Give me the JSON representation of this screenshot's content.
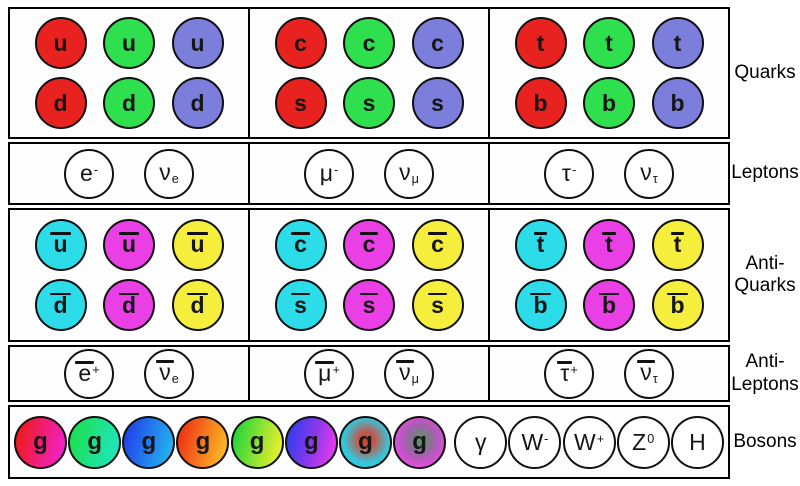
{
  "labels": {
    "quarks": [
      "Quarks"
    ],
    "leptons": [
      "Leptons"
    ],
    "antiquarks": [
      "Anti-",
      "Quarks"
    ],
    "antileptons": [
      "Anti-",
      "Leptons"
    ],
    "bosons": [
      "Bosons"
    ]
  },
  "colors": {
    "quark_fills": [
      "#e8231f",
      "#2ee04e",
      "#7b7edb"
    ],
    "quark_color_names": [
      "red",
      "green",
      "blue"
    ],
    "antiquark_fills": [
      "#2cdce8",
      "#ea3fe4",
      "#f6ee3d"
    ],
    "antiquark_color_names": [
      "cyan",
      "magenta",
      "yellow"
    ],
    "white_fill": "#ffffff",
    "outline": "#101010"
  },
  "quark_columns": [
    {
      "top": "u",
      "bottom": "d"
    },
    {
      "top": "c",
      "bottom": "s"
    },
    {
      "top": "t",
      "bottom": "b"
    }
  ],
  "lepton_columns": [
    [
      {
        "base": "e",
        "sup": "-",
        "name": "electron"
      },
      {
        "base": "ν",
        "sub": "e",
        "name": "electron-neutrino"
      }
    ],
    [
      {
        "base": "μ",
        "sup": "-",
        "name": "muon"
      },
      {
        "base": "ν",
        "sub": "μ",
        "name": "muon-neutrino"
      }
    ],
    [
      {
        "base": "τ",
        "sup": "-",
        "name": "tau"
      },
      {
        "base": "ν",
        "sub": "τ",
        "name": "tau-neutrino"
      }
    ]
  ],
  "antiquark_columns": [
    {
      "top": "u",
      "bottom": "d"
    },
    {
      "top": "c",
      "bottom": "s"
    },
    {
      "top": "t",
      "bottom": "b"
    }
  ],
  "antilepton_columns": [
    [
      {
        "base": "e",
        "sup": "+",
        "bar": true,
        "name": "positron"
      },
      {
        "base": "ν",
        "sub": "e",
        "bar": true,
        "name": "electron-antineutrino"
      }
    ],
    [
      {
        "base": "μ",
        "sup": "+",
        "bar": true,
        "name": "antimuon"
      },
      {
        "base": "ν",
        "sub": "μ",
        "bar": true,
        "name": "muon-antineutrino"
      }
    ],
    [
      {
        "base": "τ",
        "sup": "+",
        "bar": true,
        "name": "antitau"
      },
      {
        "base": "ν",
        "sub": "τ",
        "bar": true,
        "name": "tau-antineutrino"
      }
    ]
  ],
  "gluons": [
    {
      "label": "g",
      "name": "gluon-red-magenta",
      "fill": "linear-gradient(105deg, #ee1a1a 8%, #f222cc 92%)"
    },
    {
      "label": "g",
      "name": "gluon-green-cyan",
      "fill": "linear-gradient(105deg, #1dde4e 8%, #1fe6c0 92%)"
    },
    {
      "label": "g",
      "name": "gluon-blue-lightblue",
      "fill": "linear-gradient(105deg, #2041e8 8%, #25b4ef 92%)"
    },
    {
      "label": "g",
      "name": "gluon-red-orange",
      "fill": "linear-gradient(105deg, #ef2c14 5%, #f9a822 80%, #fcc62c 100%)"
    },
    {
      "label": "g",
      "name": "gluon-green-yellow",
      "fill": "linear-gradient(105deg, #22d53a 8%, #eef02b 92%)"
    },
    {
      "label": "g",
      "name": "gluon-blue-magenta",
      "fill": "linear-gradient(105deg, #2c3cf2 5%, #9038ea 55%, #ee3cee 95%)"
    },
    {
      "label": "g",
      "name": "gluon-cyan-redcore",
      "fill": "radial-gradient(circle at 52% 45%, #cf4028 0%, #c2584e 22%, #32c8dc 62%)"
    },
    {
      "label": "g",
      "name": "gluon-magenta-greencore",
      "fill": "radial-gradient(circle at 52% 45%, #4f9a5c 0%, #a75fb0 42%, #e94ae4 75%)"
    }
  ],
  "ew_bosons": [
    {
      "base": "γ",
      "name": "photon"
    },
    {
      "base": "W",
      "sup": "-",
      "name": "w-minus-boson"
    },
    {
      "base": "W",
      "sup": "+",
      "name": "w-plus-boson"
    },
    {
      "base": "Z",
      "sup": "0",
      "name": "z-boson"
    },
    {
      "base": "H",
      "name": "higgs-boson"
    }
  ]
}
